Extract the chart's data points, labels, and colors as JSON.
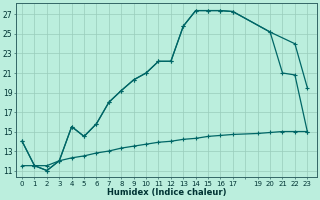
{
  "xlabel": "Humidex (Indice chaleur)",
  "bg_color": "#bbeedd",
  "line_color": "#006666",
  "grid_color": "#99ccbb",
  "xlim": [
    -0.5,
    23.8
  ],
  "ylim": [
    10.3,
    28.2
  ],
  "xtick_labels": [
    "0",
    "1",
    "2",
    "3",
    "4",
    "5",
    "6",
    "7",
    "8",
    "9",
    "10",
    "11",
    "12",
    "13",
    "14",
    "15",
    "16",
    "17",
    "",
    "19",
    "20",
    "21",
    "22",
    "23"
  ],
  "xtick_pos": [
    0,
    1,
    2,
    3,
    4,
    5,
    6,
    7,
    8,
    9,
    10,
    11,
    12,
    13,
    14,
    15,
    16,
    17,
    18,
    19,
    20,
    21,
    22,
    23
  ],
  "yticks": [
    11,
    13,
    15,
    17,
    19,
    21,
    23,
    25,
    27
  ],
  "line1_x": [
    0,
    1,
    2,
    3,
    4,
    5,
    6,
    7,
    8,
    9,
    10,
    11,
    12,
    13,
    14,
    15,
    16,
    17,
    20,
    22,
    23
  ],
  "line1_y": [
    14.0,
    11.5,
    11.0,
    12.0,
    15.5,
    14.5,
    15.8,
    18.0,
    19.2,
    20.3,
    21.0,
    22.2,
    22.2,
    25.8,
    27.4,
    27.4,
    27.4,
    27.3,
    25.2,
    24.0,
    19.5
  ],
  "line2_x": [
    0,
    1,
    2,
    3,
    4,
    5,
    6,
    7,
    8,
    9,
    10,
    11,
    12,
    13,
    14,
    15,
    16,
    17,
    20,
    21,
    22,
    23
  ],
  "line2_y": [
    14.0,
    11.5,
    11.0,
    12.0,
    15.5,
    14.5,
    15.8,
    18.0,
    19.2,
    20.3,
    21.0,
    22.2,
    22.2,
    25.8,
    27.4,
    27.4,
    27.4,
    27.3,
    25.2,
    21.0,
    20.8,
    15.0
  ],
  "line3_x": [
    0,
    1,
    2,
    3,
    4,
    5,
    6,
    7,
    8,
    9,
    10,
    11,
    12,
    13,
    14,
    15,
    16,
    17,
    19,
    20,
    21,
    22,
    23
  ],
  "line3_y": [
    11.5,
    11.5,
    11.5,
    12.0,
    12.3,
    12.5,
    12.8,
    13.0,
    13.3,
    13.5,
    13.7,
    13.9,
    14.0,
    14.2,
    14.3,
    14.5,
    14.6,
    14.7,
    14.8,
    14.9,
    15.0,
    15.0,
    15.0
  ]
}
